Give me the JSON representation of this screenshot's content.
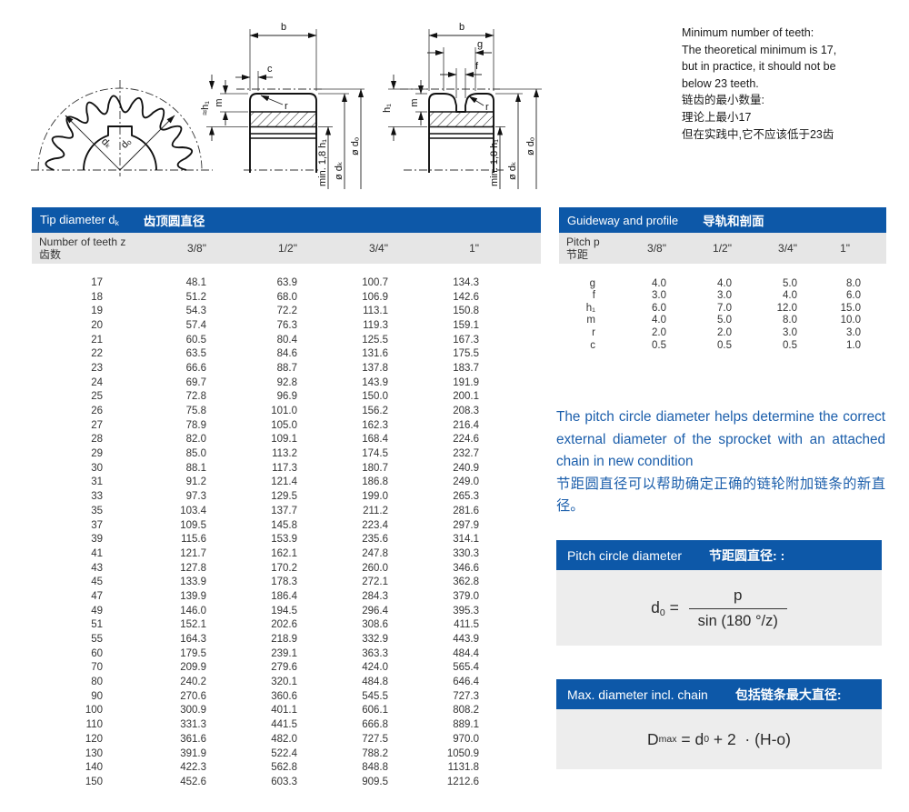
{
  "colors": {
    "bar_blue": "#0d58a8",
    "subheader_gray": "#e6e6e6",
    "panel_gray": "#ededed",
    "paragraph_blue": "#1b5eab"
  },
  "note": {
    "lines": [
      "Minimum number of teeth:",
      "The theoretical minimum is 17,",
      "but in practice, it should not be",
      "below 23 teeth.",
      "链齿的最小数量:",
      "理论上最小17",
      "但在实践中,它不应该低于23齿"
    ]
  },
  "drawings": {
    "sprocket": {
      "dk": "dₖ",
      "do": "dₒ"
    },
    "section_plain": {
      "b": "b",
      "c": "c",
      "m": "m",
      "h1": "≈h₁",
      "r": "r",
      "min18": "min. 1,8 h₁",
      "dk": "ø dₖ",
      "do": "ø dₒ"
    },
    "section_groove": {
      "b": "b",
      "g": "g",
      "f": "f",
      "m": "m",
      "h1": "h₁",
      "r": "r",
      "min18": "min. 1,8 h₁",
      "dk": "ø dₖ",
      "do": "ø dₒ"
    }
  },
  "tip_table": {
    "title_en": "Tip diameter d",
    "title_sub": "k",
    "title_zh": "齿顶圆直径",
    "col_header_line1": "Number of teeth z",
    "col_header_line2": "齿数",
    "columns": [
      "3/8\"",
      "1/2\"",
      "3/4\"",
      "1\""
    ],
    "rows": [
      [
        "17",
        "48.1",
        "63.9",
        "100.7",
        "134.3"
      ],
      [
        "18",
        "51.2",
        "68.0",
        "106.9",
        "142.6"
      ],
      [
        "19",
        "54.3",
        "72.2",
        "113.1",
        "150.8"
      ],
      [
        "20",
        "57.4",
        "76.3",
        "119.3",
        "159.1"
      ],
      [
        "21",
        "60.5",
        "80.4",
        "125.5",
        "167.3"
      ],
      [
        "22",
        "63.5",
        "84.6",
        "131.6",
        "175.5"
      ],
      [
        "23",
        "66.6",
        "88.7",
        "137.8",
        "183.7"
      ],
      [
        "24",
        "69.7",
        "92.8",
        "143.9",
        "191.9"
      ],
      [
        "25",
        "72.8",
        "96.9",
        "150.0",
        "200.1"
      ],
      [
        "26",
        "75.8",
        "101.0",
        "156.2",
        "208.3"
      ],
      [
        "27",
        "78.9",
        "105.0",
        "162.3",
        "216.4"
      ],
      [
        "28",
        "82.0",
        "109.1",
        "168.4",
        "224.6"
      ],
      [
        "29",
        "85.0",
        "113.2",
        "174.5",
        "232.7"
      ],
      [
        "30",
        "88.1",
        "117.3",
        "180.7",
        "240.9"
      ],
      [
        "31",
        "91.2",
        "121.4",
        "186.8",
        "249.0"
      ],
      [
        "33",
        "97.3",
        "129.5",
        "199.0",
        "265.3"
      ],
      [
        "35",
        "103.4",
        "137.7",
        "211.2",
        "281.6"
      ],
      [
        "37",
        "109.5",
        "145.8",
        "223.4",
        "297.9"
      ],
      [
        "39",
        "115.6",
        "153.9",
        "235.6",
        "314.1"
      ],
      [
        "41",
        "121.7",
        "162.1",
        "247.8",
        "330.3"
      ],
      [
        "43",
        "127.8",
        "170.2",
        "260.0",
        "346.6"
      ],
      [
        "45",
        "133.9",
        "178.3",
        "272.1",
        "362.8"
      ],
      [
        "47",
        "139.9",
        "186.4",
        "284.3",
        "379.0"
      ],
      [
        "49",
        "146.0",
        "194.5",
        "296.4",
        "395.3"
      ],
      [
        "51",
        "152.1",
        "202.6",
        "308.6",
        "411.5"
      ],
      [
        "55",
        "164.3",
        "218.9",
        "332.9",
        "443.9"
      ],
      [
        "60",
        "179.5",
        "239.1",
        "363.3",
        "484.4"
      ],
      [
        "70",
        "209.9",
        "279.6",
        "424.0",
        "565.4"
      ],
      [
        "80",
        "240.2",
        "320.1",
        "484.8",
        "646.4"
      ],
      [
        "90",
        "270.6",
        "360.6",
        "545.5",
        "727.3"
      ],
      [
        "100",
        "300.9",
        "401.1",
        "606.1",
        "808.2"
      ],
      [
        "110",
        "331.3",
        "441.5",
        "666.8",
        "889.1"
      ],
      [
        "120",
        "361.6",
        "482.0",
        "727.5",
        "970.0"
      ],
      [
        "130",
        "391.9",
        "522.4",
        "788.2",
        "1050.9"
      ],
      [
        "140",
        "422.3",
        "562.8",
        "848.8",
        "1131.8"
      ],
      [
        "150",
        "452.6",
        "603.3",
        "909.5",
        "1212.6"
      ]
    ]
  },
  "guideway_table": {
    "title_en": "Guideway and profile",
    "title_zh": "导轨和剖面",
    "col_header_line1": "Pitch p",
    "col_header_line2": "节距",
    "columns": [
      "3/8\"",
      "1/2\"",
      "3/4\"",
      "1\""
    ],
    "rows": [
      [
        "g",
        "4.0",
        "4.0",
        "5.0",
        "8.0"
      ],
      [
        "f",
        "3.0",
        "3.0",
        "4.0",
        "6.0"
      ],
      [
        "h₁",
        "6.0",
        "7.0",
        "12.0",
        "15.0"
      ],
      [
        "m",
        "4.0",
        "5.0",
        "8.0",
        "10.0"
      ],
      [
        "r",
        "2.0",
        "2.0",
        "3.0",
        "3.0"
      ],
      [
        "c",
        "0.5",
        "0.5",
        "0.5",
        "1.0"
      ]
    ]
  },
  "pitch_paragraph": {
    "en": "The pitch circle diameter helps determine the correct external diameter of the sprocket with an attached chain in new condition",
    "zh": "节距圆直径可以帮助确定正确的链轮附加链条的新直径。"
  },
  "pitch_box": {
    "title_en": "Pitch circle diameter",
    "title_zh": "节距圆直径: :",
    "var_base": "d",
    "var_sub": "0",
    "equals": " = ",
    "numerator": "p",
    "denominator": "sin (180 °/z)"
  },
  "max_box": {
    "title_en": "Max. diameter incl. chain",
    "title_zh": "包括链条最大直径:",
    "lhs_base": "D",
    "lhs_sub": "max",
    "mid": " = d",
    "mid_sub": "0",
    "tail": " + 2  · (H-o)"
  }
}
